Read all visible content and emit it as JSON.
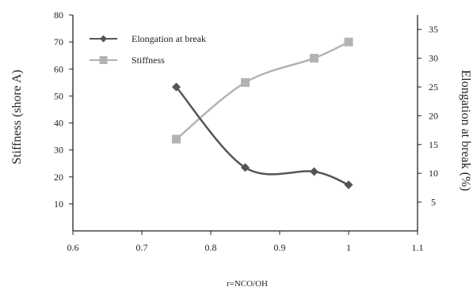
{
  "chart_data": {
    "type": "line",
    "xlabel": "r=NCO/OH",
    "ylabel_left": "Stiffness (shore A)",
    "ylabel_right": "Elongation at break (%)",
    "xlim": [
      0.6,
      1.1
    ],
    "xticks": [
      "0.6",
      "0.7",
      "0.8",
      "0.9",
      "1",
      "1.1"
    ],
    "ylim_left": [
      0,
      80
    ],
    "yticks_left": [
      "10",
      "20",
      "30",
      "40",
      "50",
      "60",
      "70",
      "80"
    ],
    "ylim_right": [
      0,
      37.5
    ],
    "yticks_right": [
      "5",
      "10",
      "15",
      "20",
      "25",
      "30",
      "35"
    ],
    "legend_position": "top-left",
    "series": [
      {
        "name": "Elongation at break",
        "axis": "right",
        "marker": "diamond",
        "color": "#555555",
        "x": [
          0.75,
          0.85,
          0.95,
          1.0
        ],
        "y": [
          25,
          11,
          10.3,
          8
        ]
      },
      {
        "name": "Stiffness",
        "axis": "left",
        "marker": "square",
        "color": "#b3b3b3",
        "x": [
          0.75,
          0.85,
          0.95,
          1.0
        ],
        "y": [
          34,
          55,
          64,
          70
        ]
      }
    ]
  }
}
